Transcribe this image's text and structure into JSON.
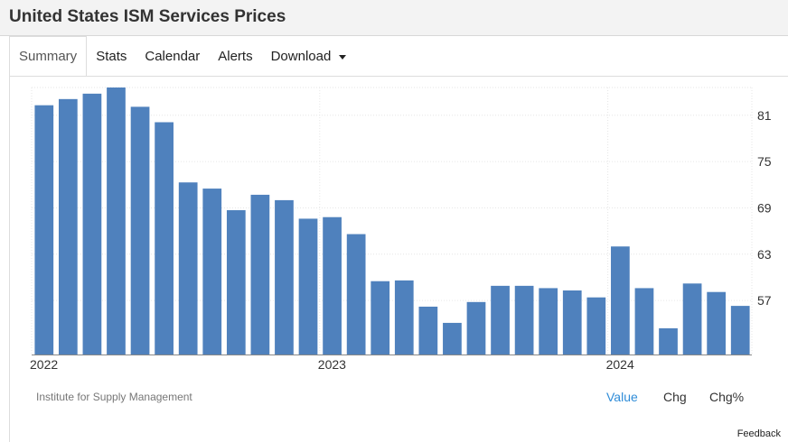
{
  "page": {
    "title": "United States ISM Services Prices"
  },
  "tabs": [
    {
      "label": "Summary",
      "active": true
    },
    {
      "label": "Stats"
    },
    {
      "label": "Calendar"
    },
    {
      "label": "Alerts"
    },
    {
      "label": "Download",
      "has_dropdown": true
    }
  ],
  "source_label": "Institute for Supply Management",
  "view_options": [
    {
      "label": "Value",
      "selected": true
    },
    {
      "label": "Chg"
    },
    {
      "label": "Chg%"
    }
  ],
  "feedback_label": "Feedback",
  "colors": {
    "bar": "#4f81bd",
    "selected_option": "#2f8cd8"
  },
  "chart_data": {
    "type": "bar",
    "categories": [
      "Jan 2022",
      "Feb 2022",
      "Mar 2022",
      "Apr 2022",
      "May 2022",
      "Jun 2022",
      "Jul 2022",
      "Aug 2022",
      "Sep 2022",
      "Oct 2022",
      "Nov 2022",
      "Dec 2022",
      "Jan 2023",
      "Feb 2023",
      "Mar 2023",
      "Apr 2023",
      "May 2023",
      "Jun 2023",
      "Jul 2023",
      "Aug 2023",
      "Sep 2023",
      "Oct 2023",
      "Nov 2023",
      "Dec 2023",
      "Jan 2024",
      "Feb 2024",
      "Mar 2024",
      "Apr 2024",
      "May 2024",
      "Jun 2024"
    ],
    "values": [
      82.3,
      83.1,
      83.8,
      84.6,
      82.1,
      80.1,
      72.3,
      71.5,
      68.7,
      70.7,
      70.0,
      67.6,
      67.8,
      65.6,
      59.5,
      59.6,
      56.2,
      54.1,
      56.8,
      58.9,
      58.9,
      58.6,
      58.3,
      57.4,
      64.0,
      58.6,
      53.4,
      59.2,
      58.1,
      56.3
    ],
    "x_tick_labels": [
      "2022",
      "2023",
      "2024"
    ],
    "y_ticks": [
      57,
      63,
      69,
      75,
      81
    ],
    "ylim": [
      50,
      84.6
    ],
    "y_axis_side": "right",
    "grid": true
  }
}
